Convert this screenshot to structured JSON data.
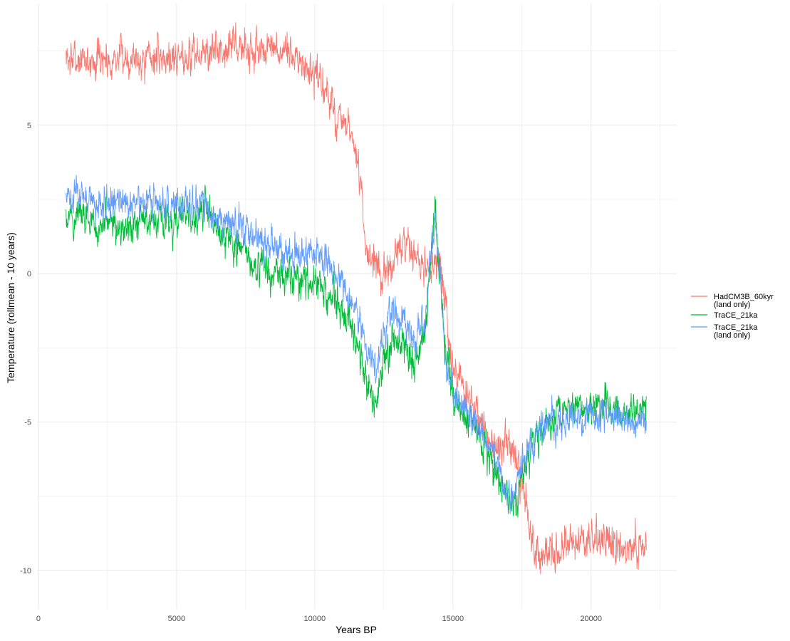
{
  "chart_data": {
    "type": "line",
    "title": "",
    "xlabel": "Years BP",
    "ylabel": "Temperature (rollmean - 10 years)",
    "xlim": [
      -50,
      23100
    ],
    "ylim": [
      -11.3,
      9.1
    ],
    "x_ticks": [
      0,
      5000,
      10000,
      15000,
      20000
    ],
    "x_tick_labels": [
      "0",
      "5000",
      "10000",
      "15000",
      "20000"
    ],
    "y_ticks": [
      -10,
      -5,
      0,
      5
    ],
    "y_tick_labels": [
      "-10",
      "-5",
      "0",
      "5"
    ],
    "grid": true,
    "legend_position": "right",
    "series": [
      {
        "name": "HadCM3B_60kyr\n(land only)",
        "color": "#F8766D",
        "noise": 0.45,
        "x": [
          1000,
          2000,
          3000,
          4000,
          5000,
          6000,
          6500,
          7000,
          8000,
          9000,
          9300,
          9800,
          10300,
          10800,
          11200,
          11500,
          11700,
          11800,
          12000,
          12200,
          12400,
          12600,
          12800,
          13000,
          13200,
          13500,
          13800,
          14000,
          14200,
          14400,
          14550,
          14700,
          14900,
          15200,
          15600,
          16000,
          16400,
          16800,
          17100,
          17300,
          17500,
          17700,
          17900,
          18100,
          18500,
          19000,
          19500,
          20000,
          20500,
          21000,
          21500,
          22000
        ],
        "y": [
          7.2,
          7.2,
          7.3,
          7.3,
          7.3,
          7.4,
          7.6,
          7.7,
          7.5,
          7.4,
          7.3,
          6.8,
          6.3,
          5.3,
          4.8,
          4.0,
          2.5,
          1.2,
          0.7,
          0.2,
          -0.3,
          -0.1,
          0.4,
          0.7,
          0.8,
          0.7,
          0.5,
          0.0,
          0.4,
          0.6,
          0.2,
          -1.0,
          -2.6,
          -3.6,
          -4.3,
          -5.0,
          -5.8,
          -5.9,
          -6.0,
          -6.3,
          -7.0,
          -8.0,
          -9.0,
          -9.6,
          -9.3,
          -9.3,
          -9.1,
          -8.8,
          -9.0,
          -9.2,
          -9.3,
          -9.4
        ]
      },
      {
        "name": "TraCE_21ka",
        "color": "#00BA38",
        "noise": 0.45,
        "x": [
          1000,
          1500,
          2000,
          3000,
          4000,
          5000,
          5800,
          6000,
          6300,
          7000,
          8000,
          8500,
          9000,
          9500,
          10000,
          10500,
          11000,
          11400,
          11800,
          12000,
          12200,
          12400,
          12800,
          13200,
          13600,
          14000,
          14200,
          14350,
          14500,
          14700,
          15000,
          15500,
          16000,
          16500,
          17000,
          17200,
          17500,
          17800,
          18000,
          18500,
          19000,
          19500,
          20000,
          20500,
          21000,
          21500,
          22000
        ],
        "y": [
          1.8,
          2.1,
          1.6,
          1.6,
          1.7,
          1.8,
          1.9,
          2.1,
          1.5,
          1.1,
          0.2,
          0.0,
          -0.1,
          -0.1,
          -0.3,
          -0.8,
          -1.2,
          -2.0,
          -3.2,
          -4.0,
          -4.5,
          -3.3,
          -2.3,
          -2.4,
          -3.2,
          -2.2,
          0.5,
          2.3,
          0.3,
          -2.5,
          -4.3,
          -4.8,
          -5.6,
          -6.5,
          -7.5,
          -8.0,
          -6.8,
          -6.0,
          -5.5,
          -5.0,
          -4.8,
          -4.5,
          -4.6,
          -4.5,
          -4.6,
          -4.6,
          -4.5
        ]
      },
      {
        "name": "TraCE_21ka\n(land only)",
        "color": "#619CFF",
        "noise": 0.42,
        "x": [
          1000,
          1500,
          2000,
          3000,
          4000,
          5000,
          5800,
          6000,
          6300,
          7000,
          8000,
          8500,
          9000,
          9500,
          10000,
          10500,
          11000,
          11400,
          11800,
          12000,
          12200,
          12400,
          12800,
          13200,
          13600,
          14000,
          14200,
          14350,
          14500,
          14700,
          15000,
          15500,
          16000,
          16500,
          17000,
          17200,
          17500,
          17800,
          18000,
          18500,
          19000,
          19500,
          20000,
          20500,
          21000,
          21500,
          22000
        ],
        "y": [
          2.4,
          2.8,
          2.3,
          2.5,
          2.4,
          2.3,
          2.4,
          2.5,
          2.0,
          1.7,
          1.2,
          0.9,
          0.8,
          0.7,
          0.6,
          0.4,
          -0.3,
          -0.9,
          -2.1,
          -3.0,
          -3.4,
          -2.2,
          -1.3,
          -1.5,
          -2.4,
          -1.7,
          0.5,
          2.1,
          0.2,
          -2.6,
          -4.0,
          -4.5,
          -5.3,
          -6.2,
          -7.2,
          -7.6,
          -6.5,
          -5.8,
          -5.5,
          -5.0,
          -4.9,
          -4.8,
          -4.8,
          -4.9,
          -4.9,
          -4.9,
          -4.9
        ]
      }
    ]
  }
}
